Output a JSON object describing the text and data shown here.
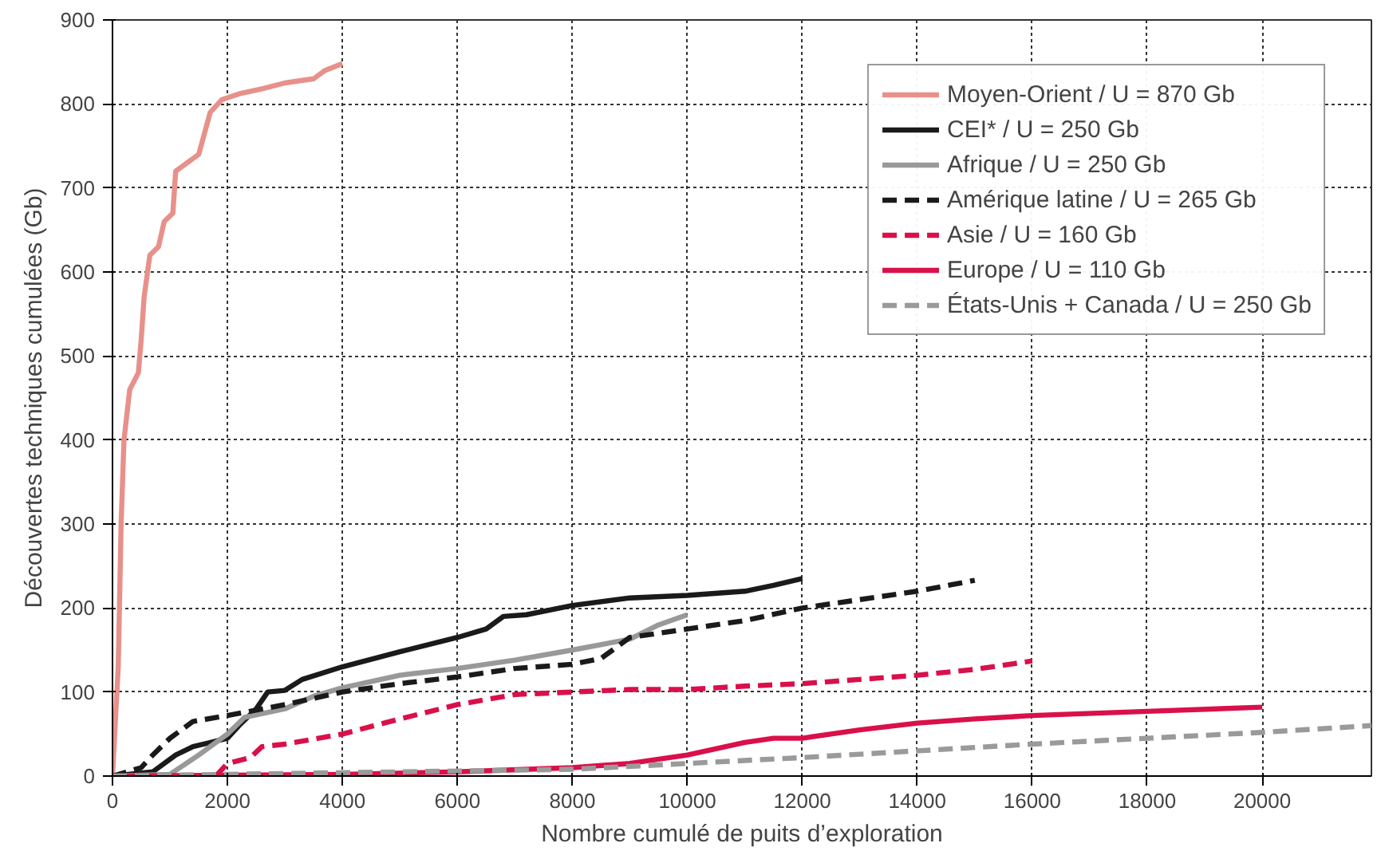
{
  "chart_data": {
    "type": "line",
    "xlabel": "Nombre cumulé de puits d’exploration",
    "ylabel": "Découvertes techniques cumulées (Gb)",
    "xlim": [
      0,
      21900
    ],
    "ylim": [
      0,
      900
    ],
    "xticks": [
      0,
      2000,
      4000,
      6000,
      8000,
      10000,
      12000,
      14000,
      16000,
      18000,
      20000
    ],
    "yticks": [
      0,
      100,
      200,
      300,
      400,
      500,
      600,
      700,
      800,
      900
    ],
    "grid": true,
    "legend": "top right",
    "marker": "none",
    "series": [
      {
        "name": "Moyen-Orient / U = 870 Gb",
        "color": "#e8908a",
        "line_style": "solid",
        "x": [
          0,
          100,
          150,
          200,
          300,
          450,
          500,
          550,
          650,
          800,
          900,
          1050,
          1100,
          1500,
          1700,
          1900,
          2200,
          2600,
          3000,
          3500,
          3700,
          4000
        ],
        "values": [
          0,
          130,
          300,
          400,
          460,
          480,
          520,
          570,
          620,
          630,
          660,
          670,
          720,
          740,
          790,
          805,
          812,
          818,
          825,
          830,
          840,
          848
        ]
      },
      {
        "name": "CEI* / U = 250 Gb",
        "color": "#1a1a1a",
        "line_style": "solid",
        "x": [
          0,
          700,
          1100,
          1400,
          2000,
          2200,
          2500,
          2700,
          3000,
          3300,
          4000,
          5000,
          6000,
          6500,
          6800,
          7200,
          8000,
          9000,
          10000,
          11000,
          11500,
          12000
        ],
        "values": [
          0,
          5,
          25,
          35,
          45,
          60,
          80,
          100,
          102,
          115,
          130,
          148,
          165,
          175,
          190,
          192,
          203,
          212,
          215,
          220,
          227,
          235
        ]
      },
      {
        "name": "Afrique / U = 250 Gb",
        "color": "#999999",
        "line_style": "solid",
        "x": [
          0,
          1000,
          1500,
          2000,
          2300,
          3000,
          3500,
          4000,
          5000,
          6000,
          7000,
          8000,
          9000,
          9500,
          10000
        ],
        "values": [
          0,
          2,
          25,
          50,
          70,
          80,
          95,
          105,
          120,
          128,
          138,
          150,
          163,
          180,
          192
        ]
      },
      {
        "name": "Amérique latine / U = 265 Gb",
        "color": "#1a1a1a",
        "line_style": "dashed",
        "x": [
          0,
          500,
          700,
          1000,
          1400,
          2000,
          3000,
          4000,
          5000,
          6000,
          7000,
          8000,
          8500,
          9000,
          10000,
          11000,
          12000,
          13000,
          14000,
          15000
        ],
        "values": [
          0,
          10,
          25,
          45,
          65,
          72,
          85,
          100,
          110,
          118,
          128,
          133,
          140,
          165,
          175,
          185,
          200,
          210,
          220,
          233
        ]
      },
      {
        "name": "Asie / U = 160 Gb",
        "color": "#d9104a",
        "line_style": "dashed",
        "x": [
          1800,
          2000,
          2400,
          2600,
          3000,
          4000,
          5000,
          6000,
          7000,
          8000,
          9000,
          10000,
          11000,
          12000,
          13000,
          14000,
          15000,
          16000
        ],
        "values": [
          0,
          15,
          22,
          35,
          38,
          50,
          68,
          85,
          97,
          100,
          103,
          103,
          107,
          110,
          115,
          120,
          127,
          137
        ]
      },
      {
        "name": "Europe / U = 110 Gb",
        "color": "#d9104a",
        "line_style": "solid",
        "x": [
          0,
          4000,
          6000,
          8000,
          9000,
          10000,
          11000,
          11500,
          12000,
          13000,
          14000,
          15000,
          16000,
          18000,
          20000
        ],
        "values": [
          0,
          2,
          5,
          10,
          15,
          25,
          40,
          45,
          45,
          55,
          63,
          68,
          72,
          77,
          82
        ]
      },
      {
        "name": "États-Unis + Canada / U = 250 Gb",
        "color": "#9a9a9a",
        "line_style": "dashed",
        "x": [
          0,
          8000,
          10000,
          12000,
          14000,
          16000,
          18000,
          20000,
          21900
        ],
        "values": [
          0,
          8,
          15,
          22,
          30,
          38,
          45,
          52,
          60
        ]
      }
    ]
  }
}
